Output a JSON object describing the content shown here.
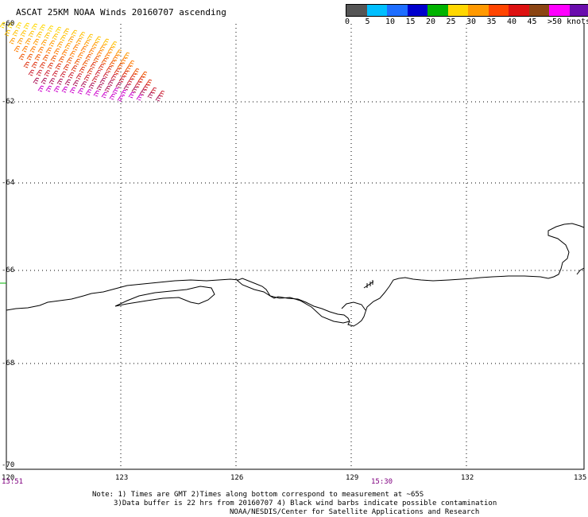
{
  "title": "ASCAT 25KM NOAA Winds 20160707 ascending",
  "legend": {
    "colors": [
      "#555555",
      "#00bfff",
      "#1e6eff",
      "#0000cd",
      "#00b300",
      "#ffd700",
      "#ff9900",
      "#ff4500",
      "#dd1111",
      "#8b4513",
      "#ff00ff",
      "#6a0dad"
    ],
    "labels": [
      "0",
      "5",
      "10",
      "15",
      "20",
      "25",
      "30",
      "35",
      "40",
      "45",
      ">50 knots"
    ]
  },
  "lat_labels": [
    "-60",
    "-62",
    "-64",
    "-66",
    "-68",
    "-70"
  ],
  "lon_labels": [
    "120",
    "123",
    "126",
    "129",
    "132",
    "135"
  ],
  "time_labels": [
    "13:51",
    "15:30"
  ],
  "notes": [
    "Note: 1) Times are GMT 2)Times along bottom correspond to measurement at ~65S",
    "3)Data buffer is 22 hrs from 20160707 4) Black wind barbs indicate possible contamination",
    "NOAA/NESDIS/Center for Satellite Applications and Research"
  ]
}
